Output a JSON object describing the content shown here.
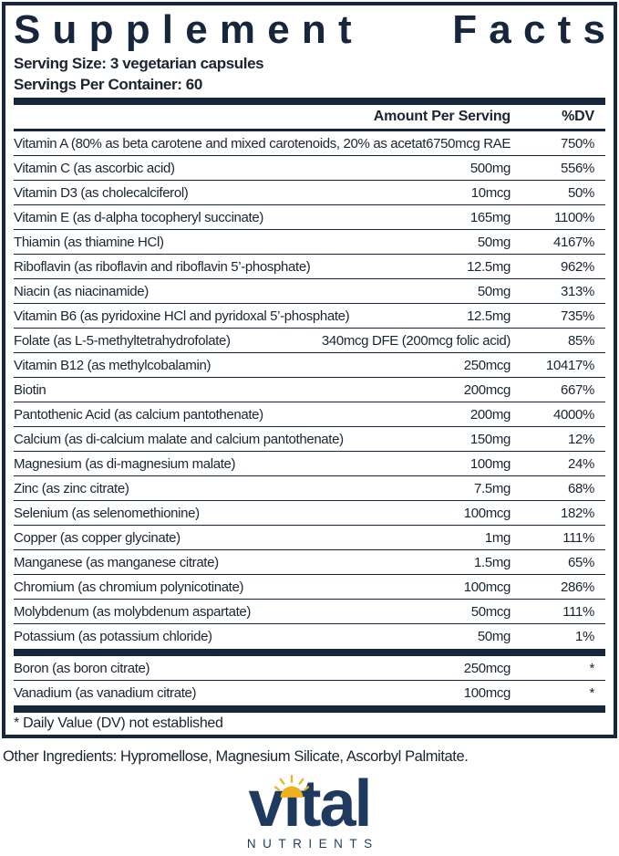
{
  "title": {
    "words": [
      "Supplement",
      "Facts"
    ]
  },
  "serving": {
    "size": "Serving Size: 3 vegetarian capsules",
    "per_container": "Servings Per Container: 60"
  },
  "table": {
    "amount_header": "Amount Per Serving",
    "dv_header": "%DV",
    "rows": [
      {
        "label": "Vitamin A (80% as beta carotene and mixed carotenoids, 20% as acetate)",
        "amount": "6750mcg RAE",
        "dv": "750%"
      },
      {
        "label": "Vitamin C (as ascorbic acid)",
        "amount": "500mg",
        "dv": "556%"
      },
      {
        "label": "Vitamin D3 (as cholecalciferol)",
        "amount": "10mcg",
        "dv": "50%"
      },
      {
        "label": "Vitamin E (as d-alpha tocopheryl succinate)",
        "amount": "165mg",
        "dv": "1100%"
      },
      {
        "label": "Thiamin (as thiamine HCl)",
        "amount": "50mg",
        "dv": "4167%"
      },
      {
        "label": "Riboflavin (as riboflavin and riboflavin 5’-phosphate)",
        "amount": "12.5mg",
        "dv": "962%"
      },
      {
        "label": "Niacin (as niacinamide)",
        "amount": "50mg",
        "dv": "313%"
      },
      {
        "label": "Vitamin B6 (as pyridoxine HCl and pyridoxal 5’-phosphate)",
        "amount": "12.5mg",
        "dv": "735%"
      },
      {
        "label": "Folate (as L-5-methyltetrahydrofolate)",
        "amount": "340mcg DFE (200mcg folic acid)",
        "dv": "85%"
      },
      {
        "label": "Vitamin B12 (as methylcobalamin)",
        "amount": "250mcg",
        "dv": "10417%"
      },
      {
        "label": "Biotin",
        "amount": "200mcg",
        "dv": "667%"
      },
      {
        "label": "Pantothenic Acid (as calcium pantothenate)",
        "amount": "200mg",
        "dv": "4000%"
      },
      {
        "label": "Calcium (as di-calcium malate and calcium pantothenate)",
        "amount": "150mg",
        "dv": "12%"
      },
      {
        "label": "Magnesium (as di-magnesium malate)",
        "amount": "100mg",
        "dv": "24%"
      },
      {
        "label": "Zinc (as zinc citrate)",
        "amount": "7.5mg",
        "dv": "68%"
      },
      {
        "label": "Selenium (as selenomethionine)",
        "amount": "100mcg",
        "dv": "182%"
      },
      {
        "label": "Copper (as copper glycinate)",
        "amount": "1mg",
        "dv": "111%"
      },
      {
        "label": "Manganese (as manganese citrate)",
        "amount": "1.5mg",
        "dv": "65%"
      },
      {
        "label": "Chromium (as chromium polynicotinate)",
        "amount": "100mcg",
        "dv": "286%"
      },
      {
        "label": "Molybdenum (as molybdenum aspartate)",
        "amount": "50mcg",
        "dv": "111%"
      },
      {
        "label": "Potassium (as potassium chloride)",
        "amount": "50mg",
        "dv": "1%"
      }
    ],
    "no_dv_rows": [
      {
        "label": "Boron (as boron citrate)",
        "amount": "250mcg",
        "dv": "*"
      },
      {
        "label": "Vanadium (as vanadium citrate)",
        "amount": "100mcg",
        "dv": "*"
      }
    ],
    "footnote": "* Daily Value (DV) not established"
  },
  "other_ingredients": "Other Ingredients: Hypromellose, Magnesium Silicate, Ascorbyl Palmitate.",
  "logo": {
    "brand": "vital",
    "tagline": "NUTRIENTS"
  },
  "colors": {
    "navy": "#16263c",
    "text": "#1b2430",
    "logo_navy": "#1e3a5f",
    "sun_gold": "#f0b01e"
  }
}
